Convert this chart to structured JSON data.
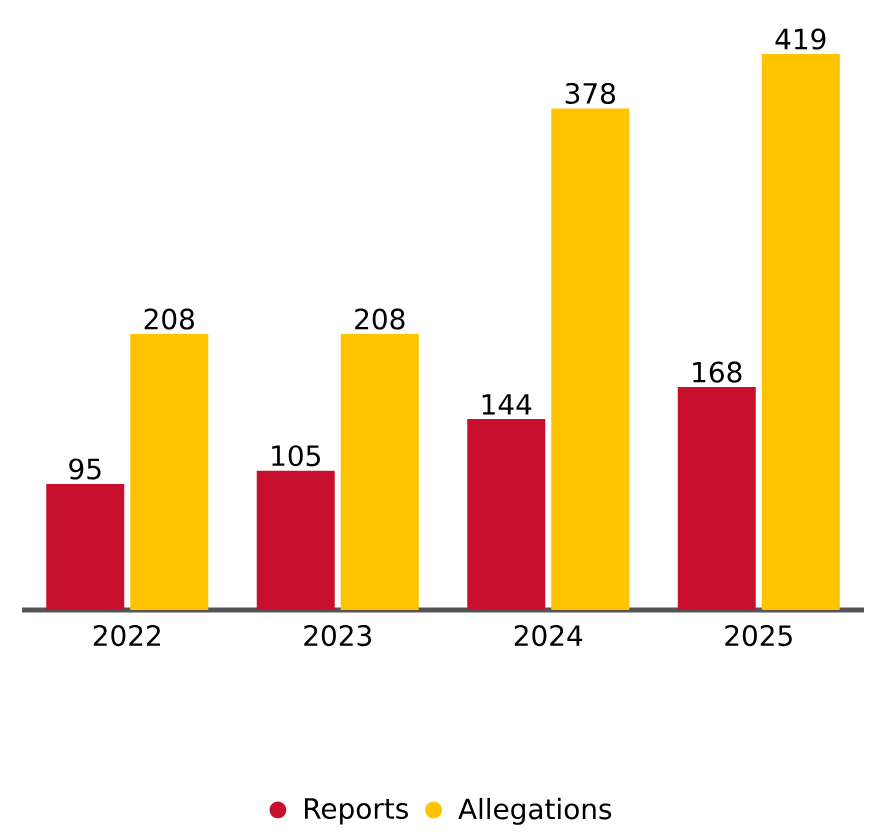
{
  "chart_data": {
    "type": "bar",
    "categories": [
      "2022",
      "2023",
      "2024",
      "2025"
    ],
    "series": [
      {
        "name": "Reports",
        "color": "#c8102e",
        "values": [
          95,
          105,
          144,
          168
        ]
      },
      {
        "name": "Allegations",
        "color": "#ffc300",
        "values": [
          208,
          208,
          378,
          419
        ]
      }
    ],
    "data_labels": true,
    "legend": "bottom"
  }
}
